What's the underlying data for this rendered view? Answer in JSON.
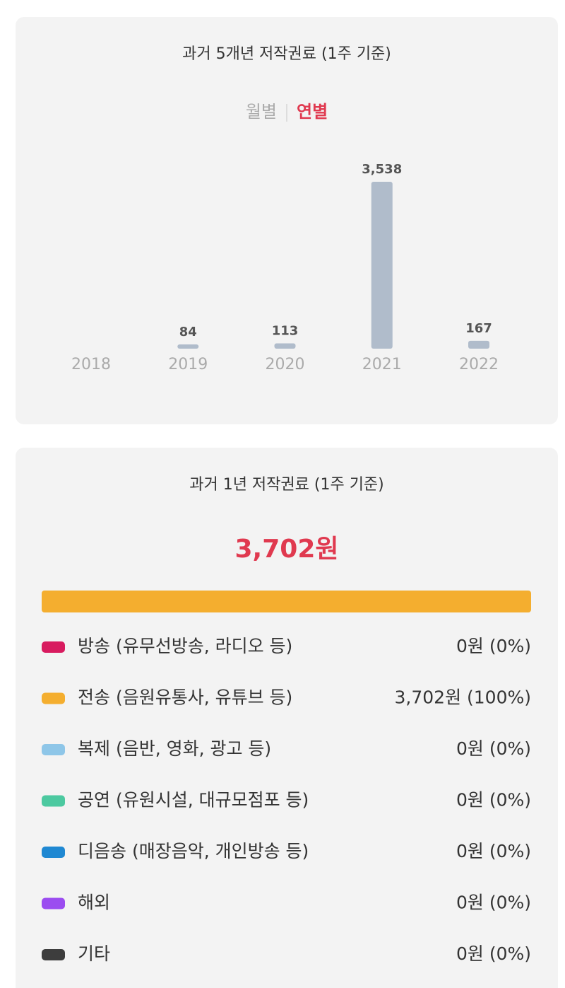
{
  "tabs": {
    "items": [
      "월별",
      "연별"
    ],
    "active": 1
  },
  "chart_data": [
    {
      "type": "bar",
      "title": "과거 5개년 저작권료 (1주 기준)",
      "categories": [
        "2018",
        "2019",
        "2020",
        "2021",
        "2022"
      ],
      "values": [
        null,
        84,
        113,
        3538,
        167
      ],
      "value_labels": [
        null,
        "84",
        "113",
        "3,538",
        "167"
      ],
      "color": "#b0bccb"
    },
    {
      "type": "stacked-bar",
      "title": "과거 1년 저작권료 (1주 기준)",
      "total_label": "3,702원",
      "series": [
        {
          "name": "방송 (유무선방송, 라디오 등)",
          "color": "#d81b5f",
          "values": [
            0
          ],
          "value_labels": [
            "0원 (0%)"
          ]
        },
        {
          "name": "전송 (음원유통사, 유튜브 등)",
          "color": "#f4ae2f",
          "values": [
            3702
          ],
          "value_labels": [
            "3,702원 (100%)"
          ]
        },
        {
          "name": "복제 (음반, 영화, 광고 등)",
          "color": "#8ec6e8",
          "values": [
            0
          ],
          "value_labels": [
            "0원 (0%)"
          ]
        },
        {
          "name": "공연 (유원시설, 대규모점포 등)",
          "color": "#4cc9a0",
          "values": [
            0
          ],
          "value_labels": [
            "0원 (0%)"
          ]
        },
        {
          "name": "디음송 (매장음악, 개인방송 등)",
          "color": "#1f88d2",
          "values": [
            0
          ],
          "value_labels": [
            "0원 (0%)"
          ]
        },
        {
          "name": "해외",
          "color": "#9b4cf0",
          "values": [
            0
          ],
          "value_labels": [
            "0원 (0%)"
          ]
        },
        {
          "name": "기타",
          "color": "#3d3d3d",
          "values": [
            0
          ],
          "value_labels": [
            "0원 (0%)"
          ]
        }
      ]
    }
  ]
}
